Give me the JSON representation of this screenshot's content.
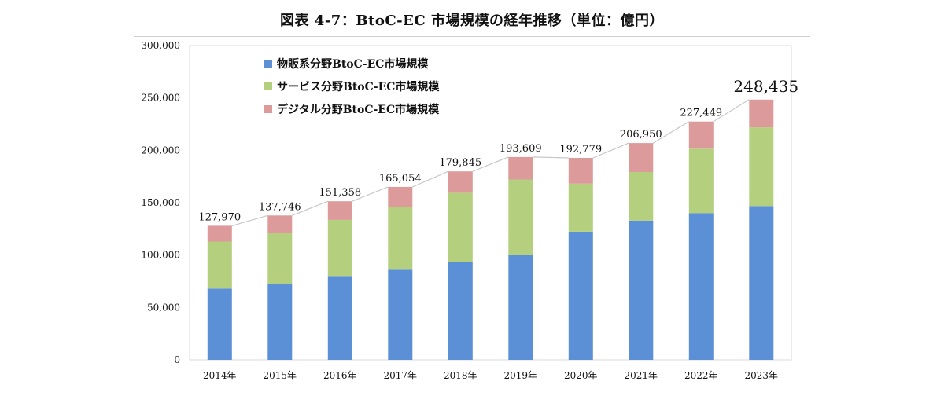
{
  "title": "図表 4-7：BtoC-EC 市場規模の経年推移（単位：億円）",
  "chart_data": {
    "type": "bar",
    "stacked": true,
    "categories": [
      "2014年",
      "2015年",
      "2016年",
      "2017年",
      "2018年",
      "2019年",
      "2020年",
      "2021年",
      "2022年",
      "2023年"
    ],
    "series": [
      {
        "name": "物販系分野BtoC-EC市場規模",
        "color": "#5b8fd6",
        "values": [
          68042,
          72398,
          80043,
          86008,
          92992,
          100515,
          122333,
          132865,
          139997,
          146760
        ]
      },
      {
        "name": "サービス分野BtoC-EC市場規模",
        "color": "#b4cf7d",
        "values": [
          44816,
          49014,
          53532,
          59568,
          66471,
          71672,
          45832,
          46424,
          61477,
          75169
        ]
      },
      {
        "name": "デジタル分野BtoC-EC市場規模",
        "color": "#dc9a9a",
        "values": [
          15112,
          16334,
          17782,
          19478,
          20382,
          21422,
          24614,
          27661,
          25975,
          26506
        ]
      }
    ],
    "totals": [
      127970,
      137746,
      151358,
      165054,
      179845,
      193609,
      192779,
      206950,
      227449,
      248435
    ],
    "total_labels": [
      "127,970",
      "137,746",
      "151,358",
      "165,054",
      "179,845",
      "193,609",
      "192,779",
      "206,950",
      "227,449",
      "248,435"
    ],
    "ylim": [
      0,
      300000
    ],
    "yticks": [
      0,
      50000,
      100000,
      150000,
      200000,
      250000,
      300000
    ],
    "ytick_labels": [
      "0",
      "50,000",
      "100,000",
      "150,000",
      "200,000",
      "250,000",
      "300,000"
    ],
    "total_line_color": "#c8c8c8",
    "legend": "top-left"
  }
}
